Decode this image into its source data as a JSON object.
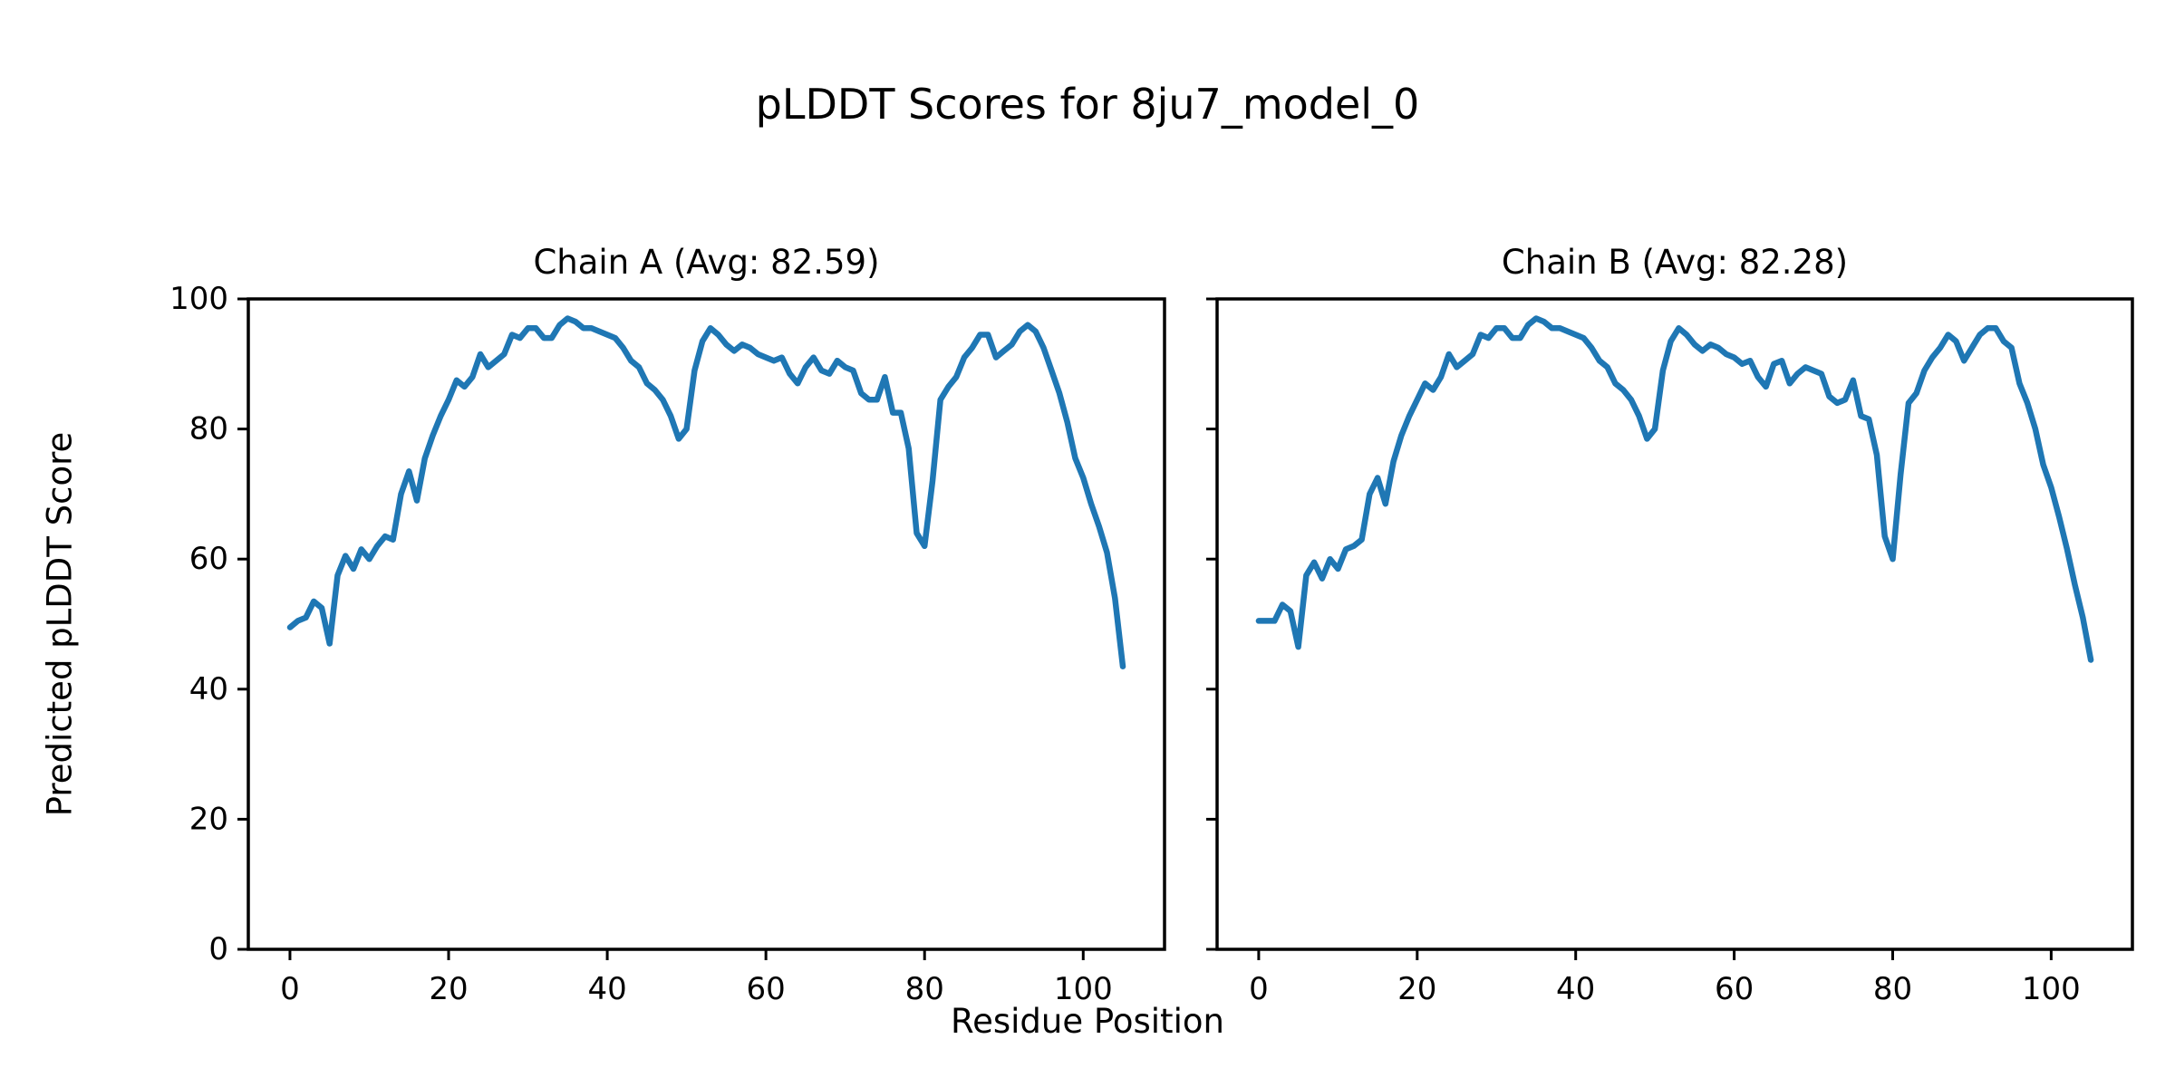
{
  "figure": {
    "title": "pLDDT Scores for 8ju7_model_0",
    "xlabel": "Residue Position",
    "ylabel": "Predicted pLDDT Score",
    "background": "#ffffff",
    "text_color": "#000000"
  },
  "chart_data": [
    {
      "type": "line",
      "title": "Chain A (Avg: 82.59)",
      "avg": 82.59,
      "xlabel": "Residue Position",
      "ylabel": "Predicted pLDDT Score",
      "xlim": [
        -5.25,
        110.25
      ],
      "ylim": [
        0,
        100
      ],
      "xticks": [
        0,
        20,
        40,
        60,
        80,
        100
      ],
      "yticks": [
        0,
        20,
        40,
        60,
        80,
        100
      ],
      "grid": false,
      "legend": "none",
      "color": "#1f77b4",
      "series": [
        {
          "name": "Chain A pLDDT",
          "x_start": 0,
          "x_step": 1,
          "values": [
            49.5,
            50.5,
            51,
            53.5,
            52.5,
            47,
            57.5,
            60.5,
            58.5,
            61.5,
            60,
            62,
            63.5,
            63,
            70,
            73.5,
            69,
            75.5,
            79,
            82,
            84.5,
            87.5,
            86.5,
            88,
            91.5,
            89.5,
            90.5,
            91.5,
            94.5,
            94,
            95.5,
            95.5,
            94,
            94,
            96,
            97,
            96.5,
            95.5,
            95.5,
            95,
            94.5,
            94,
            92.5,
            90.5,
            89.5,
            87,
            86,
            84.5,
            82,
            78.5,
            80,
            89,
            93.5,
            95.5,
            94.5,
            93,
            92,
            93,
            92.5,
            91.5,
            91,
            90.5,
            91,
            88.5,
            87,
            89.5,
            91,
            89,
            88.5,
            90.5,
            89.5,
            89,
            85.5,
            84.5,
            84.5,
            88,
            82.5,
            82.5,
            77,
            64,
            62,
            72,
            84.5,
            86.5,
            88,
            91,
            92.5,
            94.5,
            94.5,
            91,
            92,
            93,
            95,
            96,
            95,
            92.5,
            89,
            85.5,
            81,
            75.5,
            72.5,
            68.5,
            65,
            61,
            54,
            43.5
          ]
        }
      ]
    },
    {
      "type": "line",
      "title": "Chain B (Avg: 82.28)",
      "avg": 82.28,
      "xlabel": "Residue Position",
      "ylabel": "Predicted pLDDT Score",
      "xlim": [
        -5.25,
        110.25
      ],
      "ylim": [
        0,
        100
      ],
      "xticks": [
        0,
        20,
        40,
        60,
        80,
        100
      ],
      "yticks": [
        0,
        20,
        40,
        60,
        80,
        100
      ],
      "grid": false,
      "legend": "none",
      "color": "#1f77b4",
      "series": [
        {
          "name": "Chain B pLDDT",
          "x_start": 0,
          "x_step": 1,
          "values": [
            50.5,
            50.5,
            50.5,
            53,
            52,
            46.5,
            57.5,
            59.5,
            57,
            60,
            58.5,
            61.5,
            62,
            63,
            70,
            72.5,
            68.5,
            75,
            79,
            82,
            84.5,
            87,
            86,
            88,
            91.5,
            89.5,
            90.5,
            91.5,
            94.5,
            94,
            95.5,
            95.5,
            94,
            94,
            96,
            97,
            96.5,
            95.5,
            95.5,
            95,
            94.5,
            94,
            92.5,
            90.5,
            89.5,
            87,
            86,
            84.5,
            82,
            78.5,
            80,
            89,
            93.5,
            95.5,
            94.5,
            93,
            92,
            93,
            92.5,
            91.5,
            91,
            90,
            90.5,
            88,
            86.5,
            90,
            90.5,
            87,
            88.5,
            89.5,
            89,
            88.5,
            85,
            84,
            84.5,
            87.5,
            82,
            81.5,
            76,
            63.5,
            60,
            73,
            84,
            85.5,
            89,
            91,
            92.5,
            94.5,
            93.5,
            90.5,
            92.5,
            94.5,
            95.5,
            95.5,
            93.5,
            92.5,
            87,
            84,
            80,
            74.5,
            71,
            66.5,
            61.5,
            56,
            51,
            44.5
          ]
        }
      ]
    }
  ]
}
